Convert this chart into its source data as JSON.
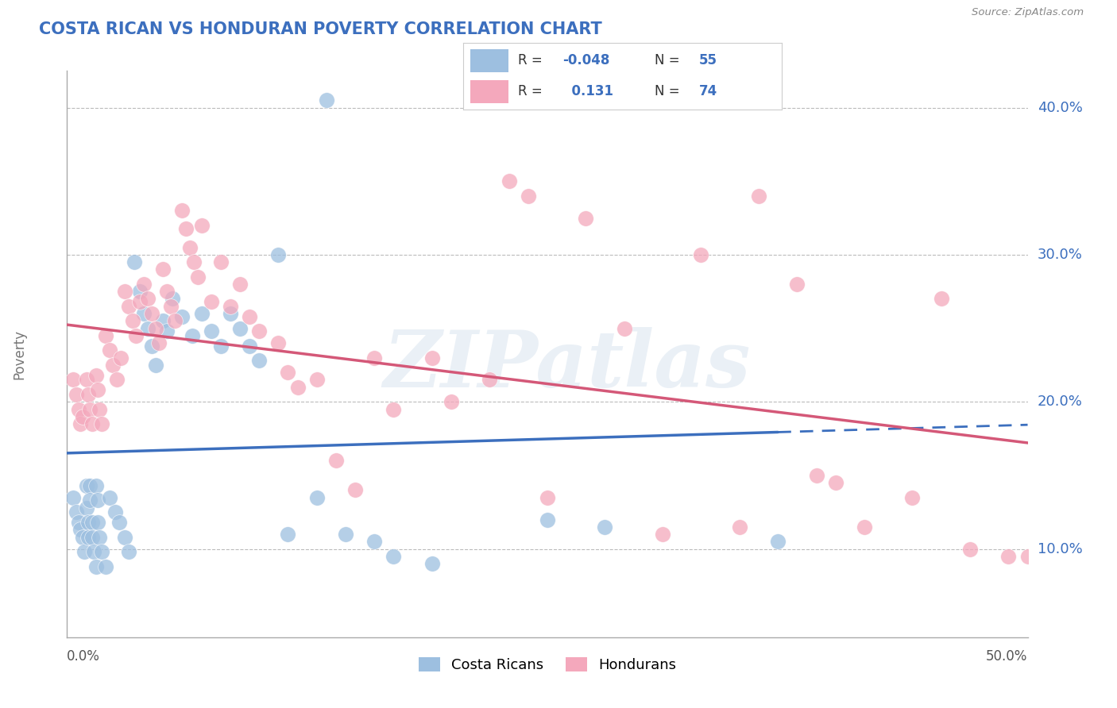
{
  "title": "COSTA RICAN VS HONDURAN POVERTY CORRELATION CHART",
  "source": "Source: ZipAtlas.com",
  "ylabel": "Poverty",
  "xlim": [
    0.0,
    0.5
  ],
  "ylim": [
    0.04,
    0.425
  ],
  "yticks": [
    0.1,
    0.2,
    0.3,
    0.4
  ],
  "ytick_labels": [
    "10.0%",
    "20.0%",
    "30.0%",
    "40.0%"
  ],
  "xtick_left": "0.0%",
  "xtick_right": "50.0%",
  "cr_color": "#9dbfe0",
  "cr_line_color": "#3c6fbe",
  "hon_color": "#f4a8bc",
  "hon_line_color": "#d45878",
  "legend_label_cr": "Costa Ricans",
  "legend_label_hon": "Hondurans",
  "watermark": "ZIPatlas",
  "background_color": "#ffffff",
  "grid_color": "#bbbbbb",
  "title_color": "#3c6fbe",
  "annotation_color": "#3c6fbe",
  "cr_scatter": [
    [
      0.003,
      0.135
    ],
    [
      0.005,
      0.125
    ],
    [
      0.006,
      0.118
    ],
    [
      0.007,
      0.113
    ],
    [
      0.008,
      0.108
    ],
    [
      0.009,
      0.098
    ],
    [
      0.01,
      0.143
    ],
    [
      0.01,
      0.128
    ],
    [
      0.011,
      0.118
    ],
    [
      0.011,
      0.108
    ],
    [
      0.012,
      0.143
    ],
    [
      0.012,
      0.133
    ],
    [
      0.013,
      0.118
    ],
    [
      0.013,
      0.108
    ],
    [
      0.014,
      0.098
    ],
    [
      0.015,
      0.088
    ],
    [
      0.015,
      0.143
    ],
    [
      0.016,
      0.133
    ],
    [
      0.016,
      0.118
    ],
    [
      0.017,
      0.108
    ],
    [
      0.018,
      0.098
    ],
    [
      0.02,
      0.088
    ],
    [
      0.022,
      0.135
    ],
    [
      0.025,
      0.125
    ],
    [
      0.027,
      0.118
    ],
    [
      0.03,
      0.108
    ],
    [
      0.032,
      0.098
    ],
    [
      0.035,
      0.295
    ],
    [
      0.038,
      0.275
    ],
    [
      0.04,
      0.26
    ],
    [
      0.042,
      0.25
    ],
    [
      0.044,
      0.238
    ],
    [
      0.046,
      0.225
    ],
    [
      0.05,
      0.255
    ],
    [
      0.052,
      0.248
    ],
    [
      0.055,
      0.27
    ],
    [
      0.06,
      0.258
    ],
    [
      0.065,
      0.245
    ],
    [
      0.07,
      0.26
    ],
    [
      0.075,
      0.248
    ],
    [
      0.08,
      0.238
    ],
    [
      0.085,
      0.26
    ],
    [
      0.09,
      0.25
    ],
    [
      0.095,
      0.238
    ],
    [
      0.1,
      0.228
    ],
    [
      0.11,
      0.3
    ],
    [
      0.115,
      0.11
    ],
    [
      0.13,
      0.135
    ],
    [
      0.135,
      0.405
    ],
    [
      0.145,
      0.11
    ],
    [
      0.16,
      0.105
    ],
    [
      0.17,
      0.095
    ],
    [
      0.19,
      0.09
    ],
    [
      0.25,
      0.12
    ],
    [
      0.28,
      0.115
    ],
    [
      0.37,
      0.105
    ]
  ],
  "hon_scatter": [
    [
      0.003,
      0.215
    ],
    [
      0.005,
      0.205
    ],
    [
      0.006,
      0.195
    ],
    [
      0.007,
      0.185
    ],
    [
      0.008,
      0.19
    ],
    [
      0.01,
      0.215
    ],
    [
      0.011,
      0.205
    ],
    [
      0.012,
      0.195
    ],
    [
      0.013,
      0.185
    ],
    [
      0.015,
      0.218
    ],
    [
      0.016,
      0.208
    ],
    [
      0.017,
      0.195
    ],
    [
      0.018,
      0.185
    ],
    [
      0.02,
      0.245
    ],
    [
      0.022,
      0.235
    ],
    [
      0.024,
      0.225
    ],
    [
      0.026,
      0.215
    ],
    [
      0.028,
      0.23
    ],
    [
      0.03,
      0.275
    ],
    [
      0.032,
      0.265
    ],
    [
      0.034,
      0.255
    ],
    [
      0.036,
      0.245
    ],
    [
      0.038,
      0.268
    ],
    [
      0.04,
      0.28
    ],
    [
      0.042,
      0.27
    ],
    [
      0.044,
      0.26
    ],
    [
      0.046,
      0.25
    ],
    [
      0.048,
      0.24
    ],
    [
      0.05,
      0.29
    ],
    [
      0.052,
      0.275
    ],
    [
      0.054,
      0.265
    ],
    [
      0.056,
      0.255
    ],
    [
      0.06,
      0.33
    ],
    [
      0.062,
      0.318
    ],
    [
      0.064,
      0.305
    ],
    [
      0.066,
      0.295
    ],
    [
      0.068,
      0.285
    ],
    [
      0.07,
      0.32
    ],
    [
      0.075,
      0.268
    ],
    [
      0.08,
      0.295
    ],
    [
      0.085,
      0.265
    ],
    [
      0.09,
      0.28
    ],
    [
      0.095,
      0.258
    ],
    [
      0.1,
      0.248
    ],
    [
      0.11,
      0.24
    ],
    [
      0.115,
      0.22
    ],
    [
      0.12,
      0.21
    ],
    [
      0.13,
      0.215
    ],
    [
      0.14,
      0.16
    ],
    [
      0.15,
      0.14
    ],
    [
      0.16,
      0.23
    ],
    [
      0.17,
      0.195
    ],
    [
      0.19,
      0.23
    ],
    [
      0.2,
      0.2
    ],
    [
      0.22,
      0.215
    ],
    [
      0.23,
      0.35
    ],
    [
      0.24,
      0.34
    ],
    [
      0.25,
      0.135
    ],
    [
      0.27,
      0.325
    ],
    [
      0.29,
      0.25
    ],
    [
      0.31,
      0.11
    ],
    [
      0.33,
      0.3
    ],
    [
      0.35,
      0.115
    ],
    [
      0.36,
      0.34
    ],
    [
      0.38,
      0.28
    ],
    [
      0.39,
      0.15
    ],
    [
      0.4,
      0.145
    ],
    [
      0.415,
      0.115
    ],
    [
      0.44,
      0.135
    ],
    [
      0.455,
      0.27
    ],
    [
      0.47,
      0.1
    ],
    [
      0.49,
      0.095
    ],
    [
      0.5,
      0.095
    ]
  ],
  "cr_line_x_solid_end": 0.37,
  "cr_line_x_dash_start": 0.37
}
